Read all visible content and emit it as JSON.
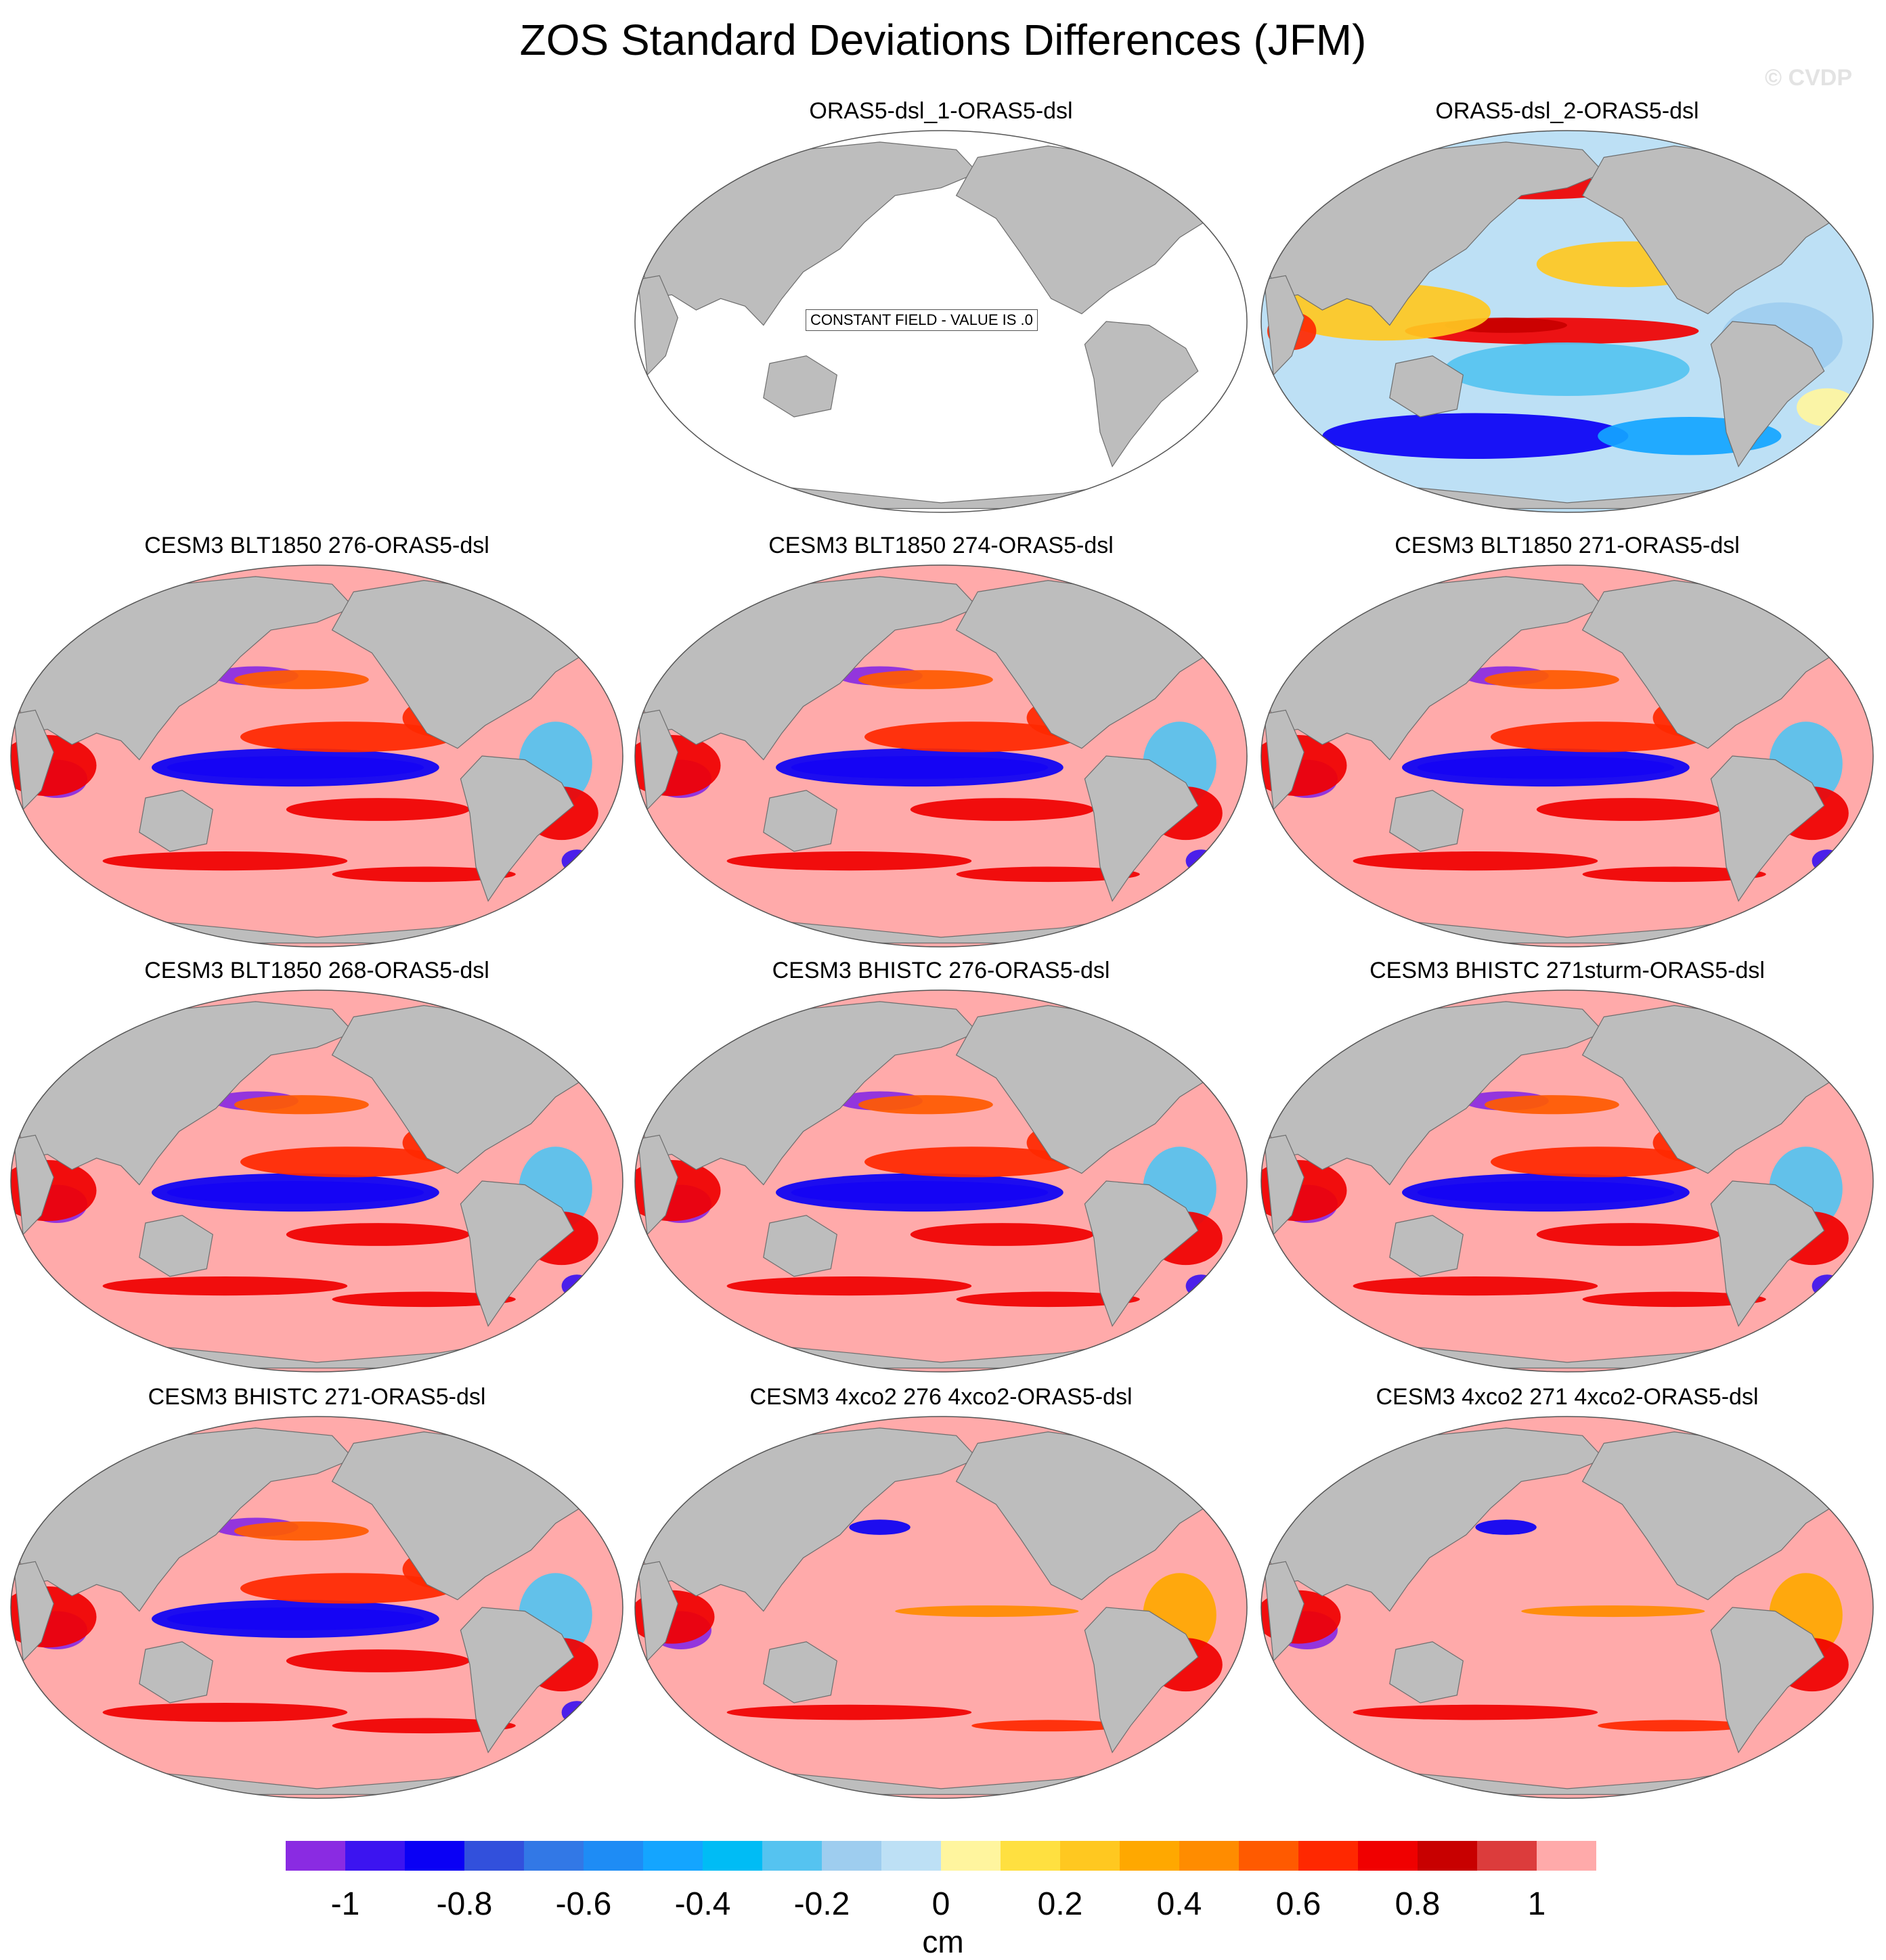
{
  "title": "ZOS Standard Deviations Differences (JFM)",
  "watermark": "© CVDP",
  "panels": [
    {
      "title": "ORAS5-dsl_1-ORAS5-dsl",
      "variant": "constant",
      "note": "CONSTANT FIELD - VALUE IS .0"
    },
    {
      "title": "ORAS5-dsl_2-ORAS5-dsl",
      "variant": "mixed"
    },
    {
      "title": "CESM3 BLT1850 276-ORAS5-dsl",
      "variant": "model"
    },
    {
      "title": "CESM3 BLT1850 274-ORAS5-dsl",
      "variant": "model"
    },
    {
      "title": "CESM3 BLT1850 271-ORAS5-dsl",
      "variant": "model"
    },
    {
      "title": "CESM3 BLT1850 268-ORAS5-dsl",
      "variant": "model"
    },
    {
      "title": "CESM3 BHISTC 276-ORAS5-dsl",
      "variant": "model"
    },
    {
      "title": "CESM3 BHISTC 271sturm-ORAS5-dsl",
      "variant": "model"
    },
    {
      "title": "CESM3 BHISTC 271-ORAS5-dsl",
      "variant": "model"
    },
    {
      "title": "CESM3 4xco2 276 4xco2-ORAS5-dsl",
      "variant": "weak"
    },
    {
      "title": "CESM3 4xco2 271 4xco2-ORAS5-dsl",
      "variant": "weak"
    }
  ],
  "colorbar": {
    "colors": [
      "#8a2be2",
      "#3c14f0",
      "#0a00f5",
      "#3250dc",
      "#3278e6",
      "#1e8cf5",
      "#14a5ff",
      "#00bcf5",
      "#55c3f0",
      "#9ecdef",
      "#bde0f5",
      "#fff59e",
      "#ffe040",
      "#ffc820",
      "#ffa800",
      "#ff8c00",
      "#ff5a00",
      "#ff2800",
      "#f00000",
      "#c80000",
      "#dc3c3c",
      "#ffaaaa"
    ],
    "labels": [
      "-1",
      "-0.8",
      "-0.6",
      "-0.4",
      "-0.2",
      "0",
      "0.2",
      "0.4",
      "0.6",
      "0.8",
      "1"
    ],
    "units": "cm"
  }
}
